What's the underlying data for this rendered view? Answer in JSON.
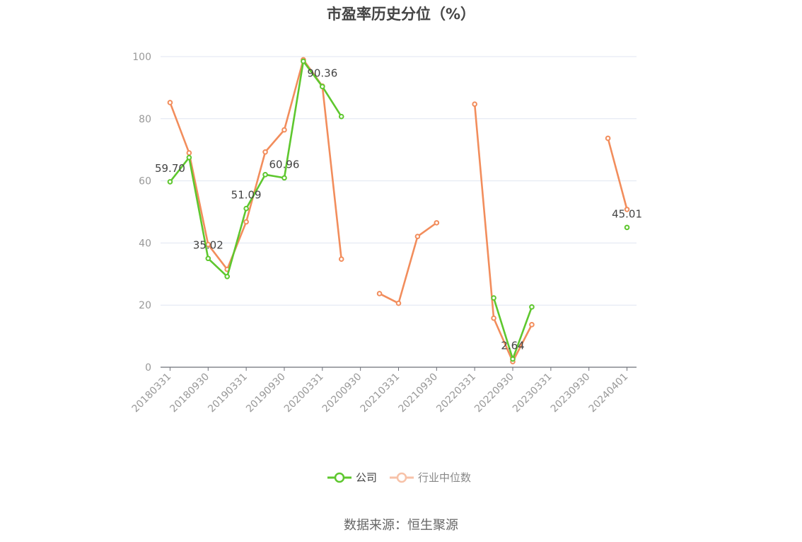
{
  "chart_data": {
    "type": "line",
    "title": "市盈率历史分位（%）",
    "source": "数据来源：恒生聚源",
    "ylim": [
      0,
      100
    ],
    "yticks": [
      0,
      20,
      40,
      60,
      80,
      100
    ],
    "x": [
      "20180331",
      "20180630",
      "20180930",
      "20181231",
      "20190331",
      "20190630",
      "20190930",
      "20191231",
      "20200331",
      "20200630",
      "20200930",
      "20201231",
      "20210331",
      "20210630",
      "20210930",
      "20211231",
      "20220331",
      "20220630",
      "20220930",
      "20221231",
      "20230331",
      "20230630",
      "20230930",
      "20231231",
      "20240401"
    ],
    "xtick_labels": [
      "20180331",
      "20180930",
      "20190331",
      "20190930",
      "20200331",
      "20200930",
      "20210331",
      "20210930",
      "20220331",
      "20220930",
      "20230331",
      "20230930",
      "20240401"
    ],
    "series": [
      {
        "name": "公司",
        "color": "#5ec72e",
        "values": [
          59.7,
          67.5,
          35.02,
          29.2,
          51.09,
          62.0,
          60.96,
          98.5,
          90.36,
          80.7,
          null,
          null,
          null,
          null,
          null,
          null,
          null,
          22.3,
          2.64,
          19.4,
          null,
          null,
          null,
          null,
          45.01
        ],
        "labels": [
          "59.70",
          null,
          "35.02",
          null,
          "51.09",
          null,
          "60.96",
          null,
          "90.36",
          null,
          null,
          null,
          null,
          null,
          null,
          null,
          null,
          null,
          "2.64",
          null,
          null,
          null,
          null,
          null,
          "45.01"
        ]
      },
      {
        "name": "行业中位数",
        "color": "#f28d5c",
        "values": [
          85.2,
          69.0,
          39.5,
          31.5,
          46.8,
          69.3,
          76.4,
          99.0,
          90.5,
          34.8,
          null,
          23.7,
          20.6,
          42.1,
          46.5,
          null,
          84.7,
          15.8,
          1.8,
          13.7,
          null,
          null,
          null,
          73.7,
          50.8
        ]
      }
    ],
    "legend_position": "bottom-center"
  }
}
